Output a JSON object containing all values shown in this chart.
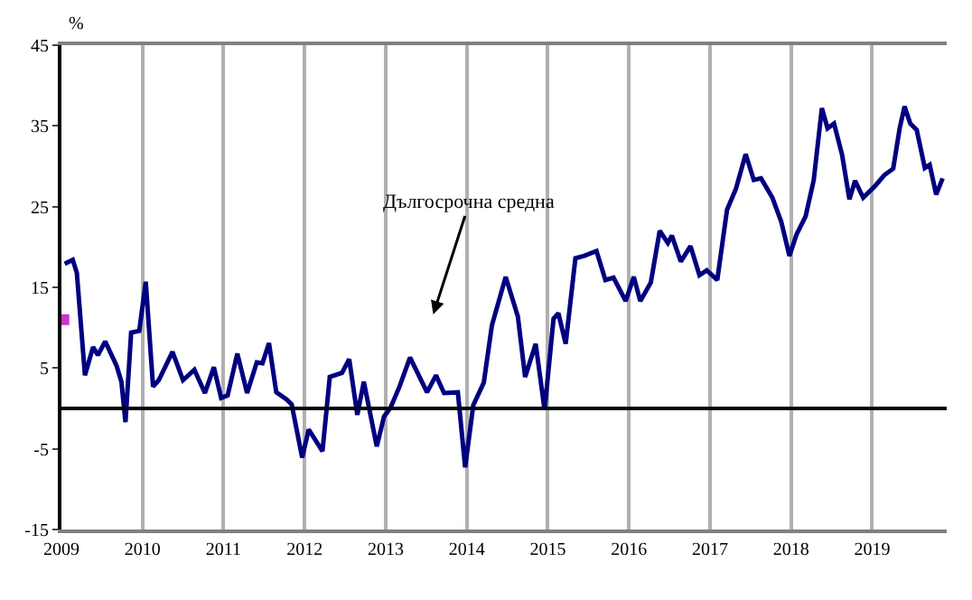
{
  "chart_data": {
    "type": "line",
    "ylabel": "%",
    "xlim": [
      2009,
      2019.92
    ],
    "xticks": [
      2009,
      2010,
      2011,
      2012,
      2013,
      2014,
      2015,
      2016,
      2017,
      2018,
      2019
    ],
    "ylim": [
      -15,
      45
    ],
    "yticks": [
      -15,
      -5,
      5,
      15,
      25,
      35,
      45
    ],
    "grid": "x",
    "ref_lines": [
      {
        "axis": "y",
        "value": 0,
        "color": "#000000",
        "label": "Дългосрочна средна"
      }
    ],
    "series": [
      {
        "color": "#000080",
        "x": [
          2009.04,
          2009.14,
          2009.19,
          2009.29,
          2009.39,
          2009.45,
          2009.54,
          2009.68,
          2009.74,
          2009.79,
          2009.86,
          2009.96,
          2010.04,
          2010.13,
          2010.2,
          2010.37,
          2010.5,
          2010.64,
          2010.77,
          2010.88,
          2010.97,
          2011.05,
          2011.17,
          2011.29,
          2011.41,
          2011.48,
          2011.56,
          2011.65,
          2011.78,
          2011.84,
          2011.97,
          2012.05,
          2012.22,
          2012.31,
          2012.46,
          2012.55,
          2012.65,
          2012.73,
          2012.89,
          2012.98,
          2013.06,
          2013.17,
          2013.3,
          2013.51,
          2013.62,
          2013.72,
          2013.89,
          2013.98,
          2014.08,
          2014.21,
          2014.31,
          2014.48,
          2014.63,
          2014.72,
          2014.85,
          2014.96,
          2015.07,
          2015.13,
          2015.22,
          2015.34,
          2015.45,
          2015.6,
          2015.71,
          2015.81,
          2015.96,
          2016.06,
          2016.14,
          2016.27,
          2016.38,
          2016.48,
          2016.53,
          2016.64,
          2016.76,
          2016.87,
          2016.96,
          2017.09,
          2017.21,
          2017.32,
          2017.44,
          2017.54,
          2017.63,
          2017.77,
          2017.88,
          2017.98,
          2018.07,
          2018.18,
          2018.28,
          2018.38,
          2018.45,
          2018.53,
          2018.63,
          2018.72,
          2018.79,
          2018.89,
          2019.04,
          2019.15,
          2019.26,
          2019.34,
          2019.4,
          2019.47,
          2019.55,
          2019.65,
          2019.71,
          2019.79,
          2019.87
        ],
        "values": [
          17.9,
          18.4,
          16.8,
          4.1,
          7.6,
          6.6,
          8.3,
          5.3,
          3.3,
          -1.7,
          9.4,
          9.6,
          15.7,
          2.7,
          3.5,
          7.0,
          3.5,
          4.8,
          1.9,
          5.1,
          1.3,
          1.6,
          6.8,
          1.9,
          5.7,
          5.6,
          8.1,
          2.0,
          1.1,
          0.5,
          -6.1,
          -2.6,
          -5.3,
          3.9,
          4.4,
          6.1,
          -0.8,
          3.3,
          -4.7,
          -1.0,
          0.1,
          2.7,
          6.3,
          2.0,
          4.1,
          1.9,
          2.0,
          -7.3,
          0.4,
          3.2,
          10.3,
          16.3,
          11.4,
          3.9,
          8.0,
          -0.2,
          11.1,
          11.8,
          8.0,
          18.6,
          18.9,
          19.5,
          15.9,
          16.2,
          13.3,
          16.3,
          13.3,
          15.6,
          22.0,
          20.5,
          21.4,
          18.2,
          20.1,
          16.5,
          17.1,
          15.9,
          24.6,
          27.2,
          31.5,
          28.3,
          28.5,
          26.1,
          23.1,
          18.9,
          21.6,
          23.8,
          28.3,
          37.2,
          34.7,
          35.3,
          31.4,
          25.9,
          28.2,
          26.1,
          27.6,
          28.9,
          29.7,
          34.7,
          37.4,
          35.3,
          34.5,
          29.8,
          30.2,
          26.5,
          28.5
        ]
      },
      {
        "type": "scatter",
        "marker": "square",
        "color": "#cc33cc",
        "x": [
          2009.03
        ],
        "values": [
          11
        ]
      }
    ]
  }
}
